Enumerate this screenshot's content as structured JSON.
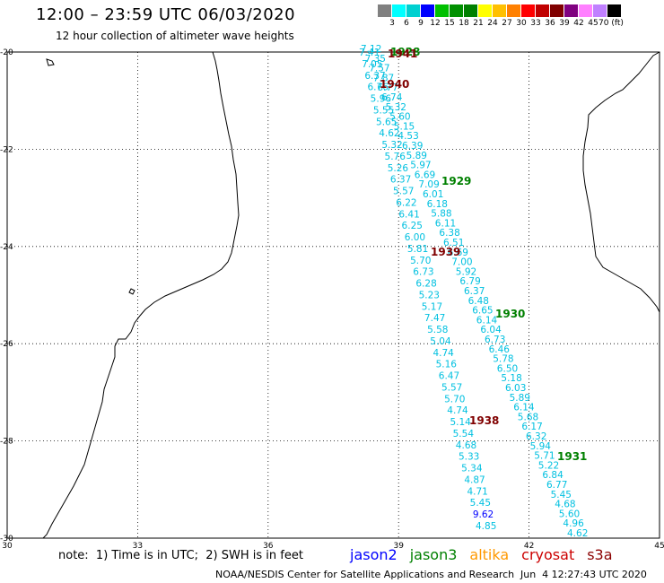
{
  "header": {
    "title": "12:00 – 23:59 UTC 06/03/2020",
    "subtitle": "12 hour collection of altimeter wave heights"
  },
  "colorbar": {
    "colors": [
      "#808080",
      "#00ffff",
      "#00d0d0",
      "#0000ff",
      "#00c000",
      "#009000",
      "#008000",
      "#ffff00",
      "#ffc000",
      "#ff8000",
      "#ff0000",
      "#c00000",
      "#800000",
      "#800080",
      "#ff80ff",
      "#c080ff",
      "#000000"
    ],
    "labels": [
      "3",
      "6",
      "9",
      "12",
      "15",
      "18",
      "21",
      "24",
      "27",
      "30",
      "33",
      "36",
      "39",
      "42",
      "45",
      "70 (ft)"
    ]
  },
  "axes": {
    "lon_labels": [
      "30",
      "33",
      "36",
      "39",
      "42",
      "45"
    ],
    "lat_labels": [
      "-20",
      "-22",
      "-24",
      "-26",
      "-28",
      "-30"
    ]
  },
  "tracks": [
    {
      "mission": "jason3",
      "color": "#00c0e0",
      "values": [
        "7.12",
        "7.35",
        "7.57",
        "7.87",
        "6.77",
        "6.74",
        "5.32",
        "5.60",
        "5.15",
        "4.53",
        "6.39",
        "5.89",
        "5.97",
        "6.69",
        "7.09",
        "6.01",
        "6.18",
        "5.88",
        "6.11",
        "6.38",
        "6.51",
        "6.69",
        "7.00",
        "5.92",
        "6.79",
        "6.37",
        "6.48",
        "6.65",
        "6.14",
        "6.04",
        "6.73",
        "6.46",
        "5.78",
        "6.50",
        "5.18",
        "6.03",
        "5.89",
        "6.14",
        "5.68",
        "6.17",
        "6.32",
        "5.94",
        "5.71",
        "5.22",
        "6.84",
        "6.77",
        "5.45",
        "4.68",
        "5.60",
        "4.96",
        "4.62"
      ]
    },
    {
      "mission": "jason3",
      "color": "#00c0e0",
      "values": [
        "7.41",
        "7.05",
        "6.37",
        "6.76",
        "5.96",
        "5.55",
        "5.65",
        "4.62",
        "5.32",
        "5.76",
        "5.26",
        "6.37",
        "5.57",
        "6.22",
        "6.41",
        "6.25",
        "6.00",
        "5.81",
        "5.70",
        "6.73",
        "6.28",
        "5.23",
        "5.17",
        "7.47",
        "5.58",
        "5.04",
        "4.74",
        "5.16",
        "6.47",
        "5.57",
        "5.70",
        "4.74",
        "5.14",
        "5.54",
        "4.68",
        "5.33",
        "5.34",
        "4.87",
        "4.71",
        "5.45",
        "9.62",
        "4.85"
      ]
    }
  ],
  "pass_labels": [
    {
      "text": "1928",
      "mission": "jason3",
      "color": "#008000"
    },
    {
      "text": "1941",
      "mission": "cryosat",
      "color": "#800000"
    },
    {
      "text": "1940",
      "mission": "cryosat",
      "color": "#800000"
    },
    {
      "text": "1929",
      "mission": "jason3",
      "color": "#008000"
    },
    {
      "text": "1939",
      "mission": "cryosat",
      "color": "#800000"
    },
    {
      "text": "1930",
      "mission": "jason3",
      "color": "#008000"
    },
    {
      "text": "1938",
      "mission": "cryosat",
      "color": "#800000"
    },
    {
      "text": "1931",
      "mission": "jason3",
      "color": "#008000"
    }
  ],
  "footer": {
    "note": "note:  1) Time is in UTC;  2) SWH is in feet",
    "missions": [
      {
        "label": "jason2",
        "color": "#0000ff"
      },
      {
        "label": "jason3",
        "color": "#008000"
      },
      {
        "label": "altika",
        "color": "#ff9900"
      },
      {
        "label": "cryosat",
        "color": "#cc0000"
      },
      {
        "label": "s3a",
        "color": "#8b0000"
      }
    ],
    "credit": "NOAA/NESDIS Center for Satellite Applications and Research",
    "timestamp": "Jun  4 12:27:43 UTC 2020"
  }
}
